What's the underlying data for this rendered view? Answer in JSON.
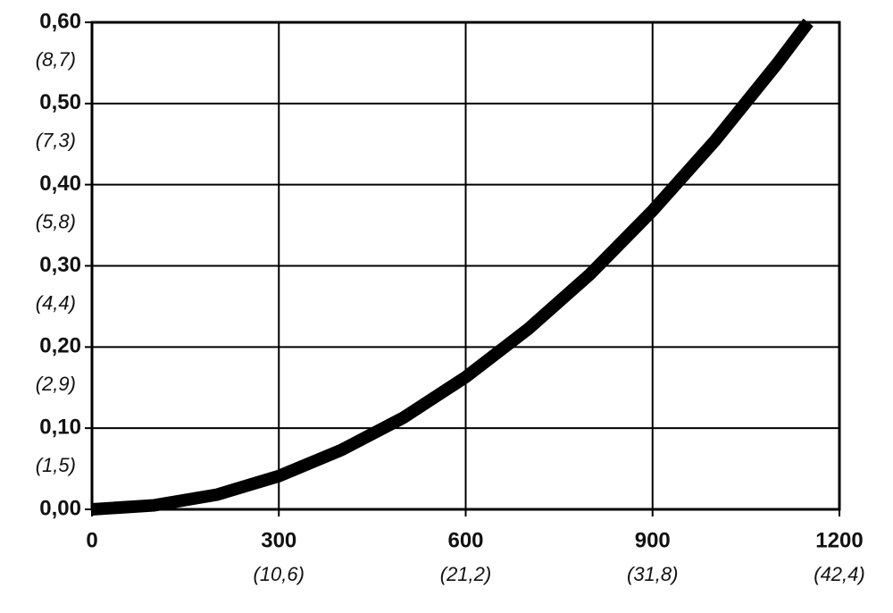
{
  "chart_data": {
    "type": "line",
    "x": [
      0,
      100,
      200,
      300,
      400,
      500,
      600,
      700,
      800,
      900,
      1000,
      1100,
      1150
    ],
    "series": [
      {
        "color": "#000000",
        "values": [
          0,
          0.005,
          0.018,
          0.041,
          0.073,
          0.113,
          0.163,
          0.222,
          0.29,
          0.368,
          0.454,
          0.549,
          0.6
        ]
      }
    ],
    "xlim": [
      0,
      1200
    ],
    "xticks": [
      0,
      300,
      600,
      900,
      1200
    ],
    "xtick_sublabels": [
      null,
      "(10,6)",
      "(21,2)",
      "(31,8)",
      "(42,4)"
    ],
    "ylim": [
      0,
      0.6
    ],
    "yticks": [
      {
        "value": 0,
        "label": "0,00"
      },
      {
        "value": 0.1,
        "label": "0,10"
      },
      {
        "value": 0.2,
        "label": "0,20"
      },
      {
        "value": 0.3,
        "label": "0,30"
      },
      {
        "value": 0.4,
        "label": "0,40"
      },
      {
        "value": 0.5,
        "label": "0,50"
      },
      {
        "value": 0.6,
        "label": "0,60"
      }
    ],
    "ytick_sublabels": [
      null,
      "(1,5)",
      "(2,9)",
      "(4,4)",
      "(5,8)",
      "(7,3)",
      "(8,7)"
    ],
    "grid": true
  }
}
